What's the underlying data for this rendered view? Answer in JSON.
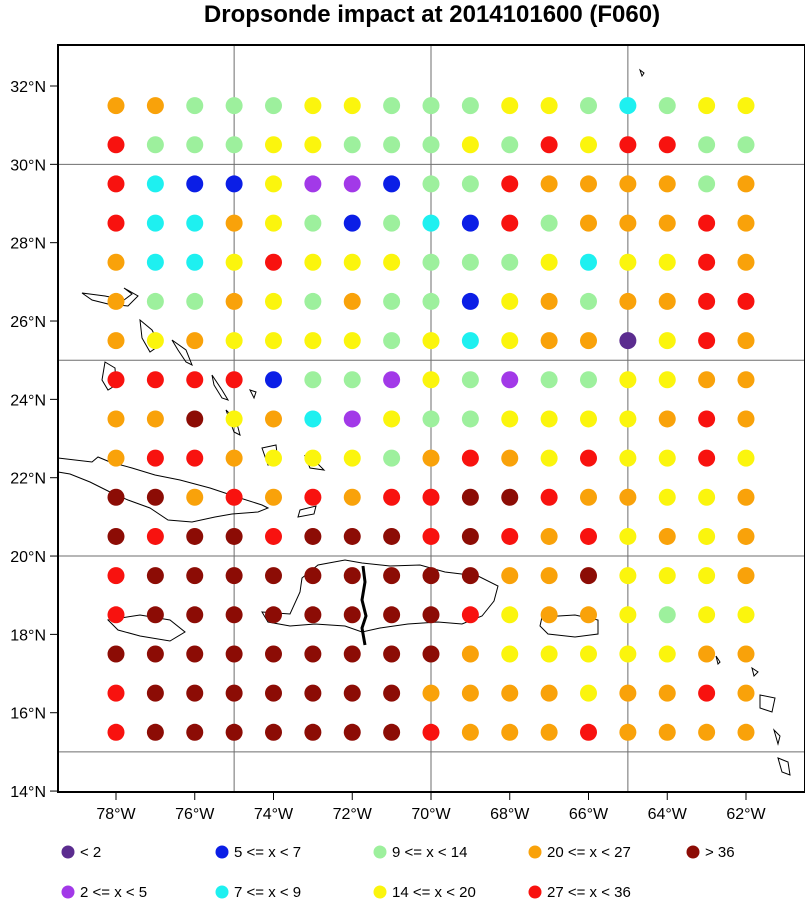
{
  "title": "Dropsonde impact at 2014101600 (F060)",
  "colors": {
    "c1": "#5b2c8f",
    "c2": "#a239e8",
    "c3": "#0b1ee6",
    "c4": "#1ef0f0",
    "c5": "#9df09d",
    "c6": "#fbf50d",
    "c7": "#f9a20a",
    "c8": "#f8120f",
    "c9": "#8c0c05"
  },
  "axes": {
    "lon_labels": [
      "78°W",
      "76°W",
      "74°W",
      "72°W",
      "70°W",
      "68°W",
      "66°W",
      "64°W",
      "62°W"
    ],
    "lat_labels": [
      "32°N",
      "30°N",
      "28°N",
      "26°N",
      "24°N",
      "22°N",
      "20°N",
      "18°N",
      "16°N",
      "14°N"
    ]
  },
  "legend": [
    {
      "label": "<  2",
      "color_key": "c1"
    },
    {
      "label": "5 <= x <  7",
      "color_key": "c3"
    },
    {
      "label": "9 <= x < 14",
      "color_key": "c5"
    },
    {
      "label": "20 <= x < 27",
      "color_key": "c7"
    },
    {
      "label": "> 36",
      "color_key": "c9"
    },
    {
      "label": "2 <= x <  5",
      "color_key": "c2"
    },
    {
      "label": "7 <= x <  9",
      "color_key": "c4"
    },
    {
      "label": "14 <= x < 20",
      "color_key": "c6"
    },
    {
      "label": "27 <= x < 36",
      "color_key": "c8"
    }
  ],
  "grid": {
    "lon_start": -78,
    "lon_step": 1,
    "lat_start": 31.5,
    "lat_step": -1,
    "rows": [
      "77555665556654566",
      "85556655565868855",
      "84336223558777757",
      "84476535438577787",
      "74468666555646687",
      "75576575536757788",
      "76766665646771687",
      "88883552652556677",
      "77967426556666787",
      "78876665787686686",
      "99787878899877667",
      "98998999898786767",
      "89999999997796667",
      "89999999986776566",
      "99999999976666677",
      "89999999777767787",
      "89999999877787777"
    ]
  }
}
